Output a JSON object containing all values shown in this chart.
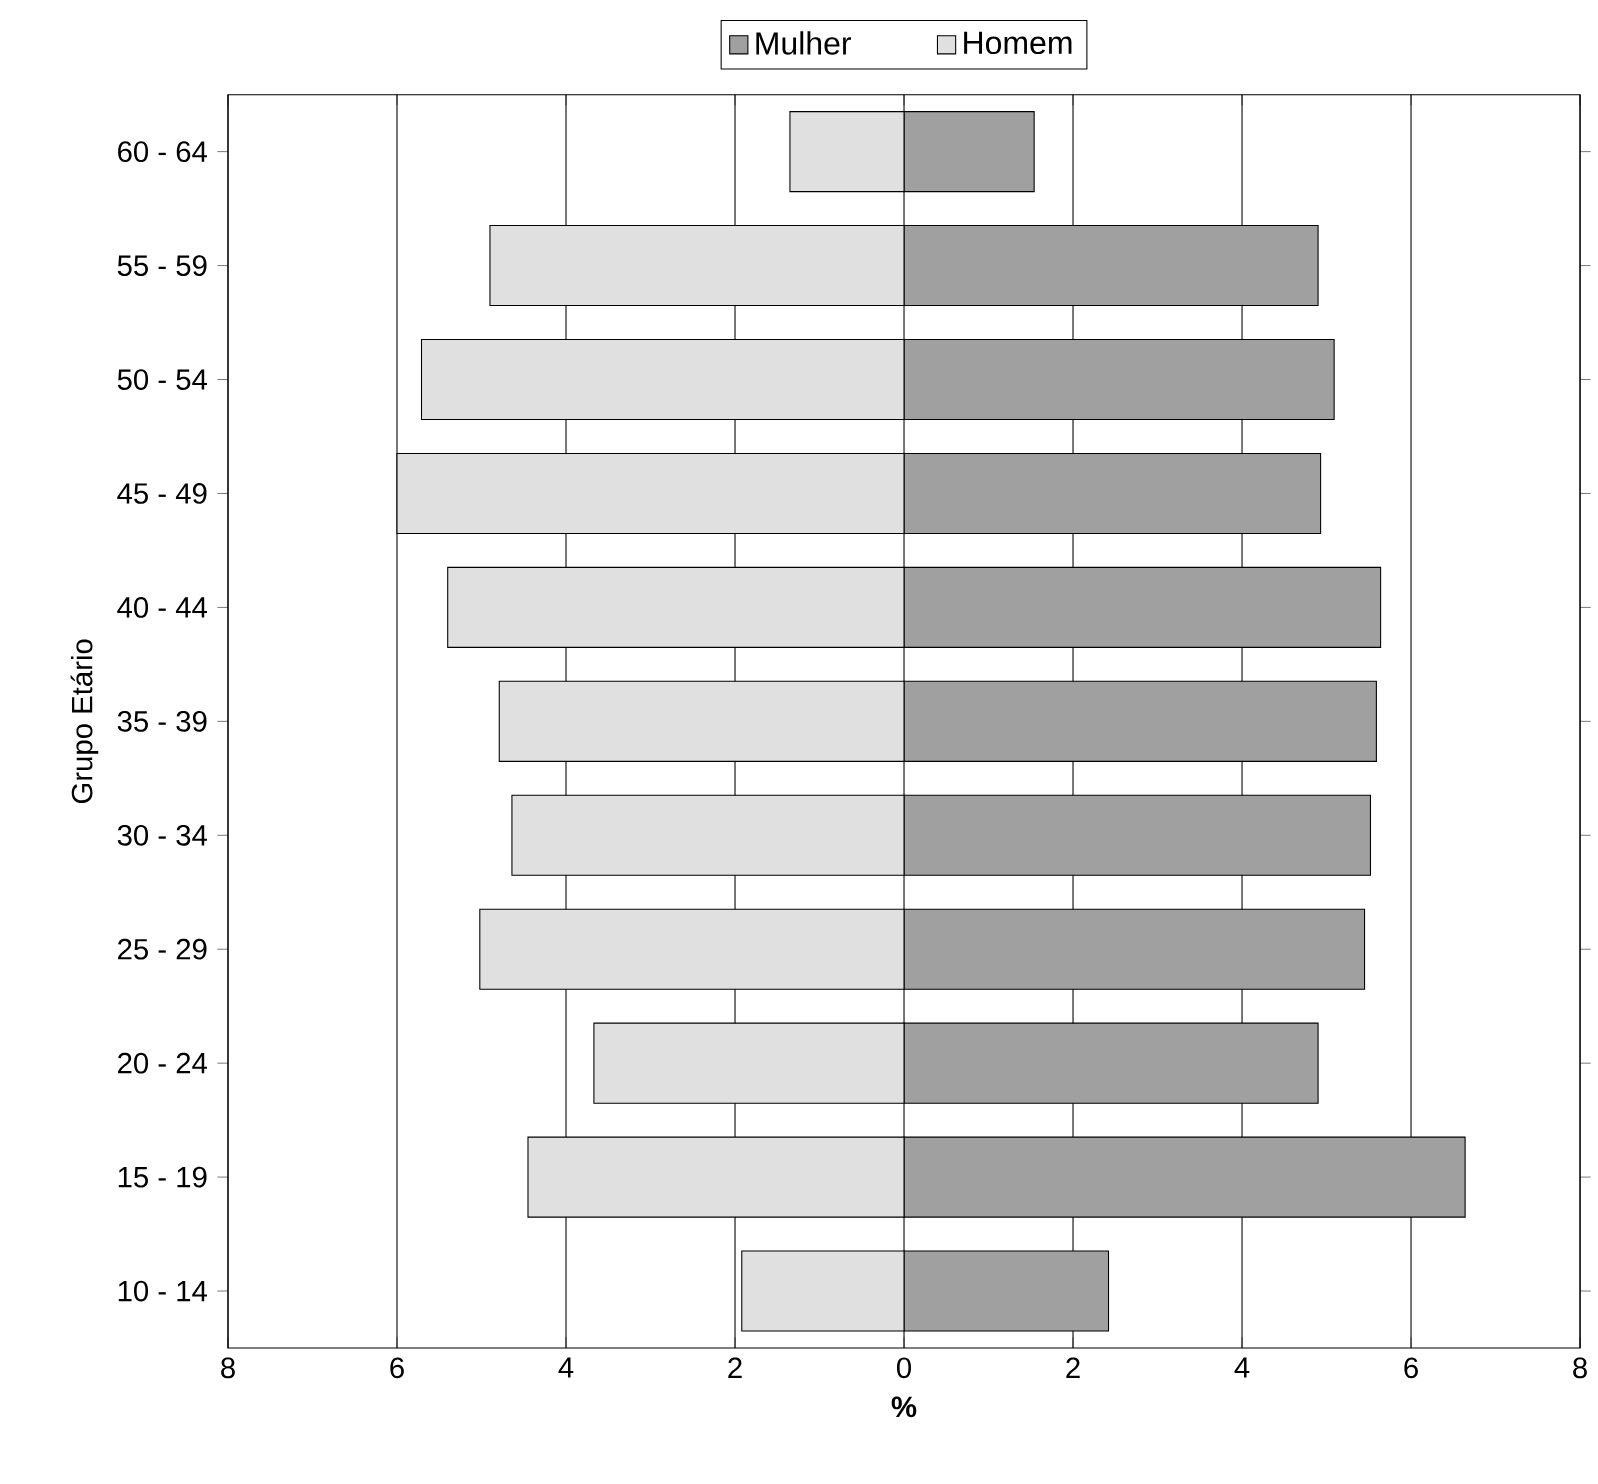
{
  "chart_data": {
    "type": "bar",
    "orientation": "horizontal",
    "xlabel": "%",
    "ylabel": "Grupo Etário",
    "categories": [
      "60 - 64",
      "55 - 59",
      "50 - 54",
      "45 - 49",
      "40 - 44",
      "35 - 39",
      "30 - 34",
      "25 - 29",
      "20 - 24",
      "15 - 19",
      "10 - 14"
    ],
    "series": [
      {
        "name": "Homem",
        "color": "#e0e0e0",
        "values": [
          -1.35,
          -4.9,
          -5.71,
          -6.0,
          -5.4,
          -4.79,
          -4.64,
          -5.02,
          -3.67,
          -4.45,
          -1.92
        ]
      },
      {
        "name": "Mulher",
        "color": "#a0a0a0",
        "values": [
          1.54,
          4.9,
          5.09,
          4.93,
          5.64,
          5.59,
          5.52,
          5.45,
          4.9,
          6.64,
          2.42
        ]
      }
    ],
    "xlim": [
      -8,
      8
    ],
    "xticks": [
      {
        "value": -8,
        "label": "8"
      },
      {
        "value": -6,
        "label": "6"
      },
      {
        "value": -4,
        "label": "4"
      },
      {
        "value": -2,
        "label": "2"
      },
      0,
      2,
      4,
      6,
      8
    ],
    "grid": "x",
    "legend": "top",
    "stacked": true
  }
}
